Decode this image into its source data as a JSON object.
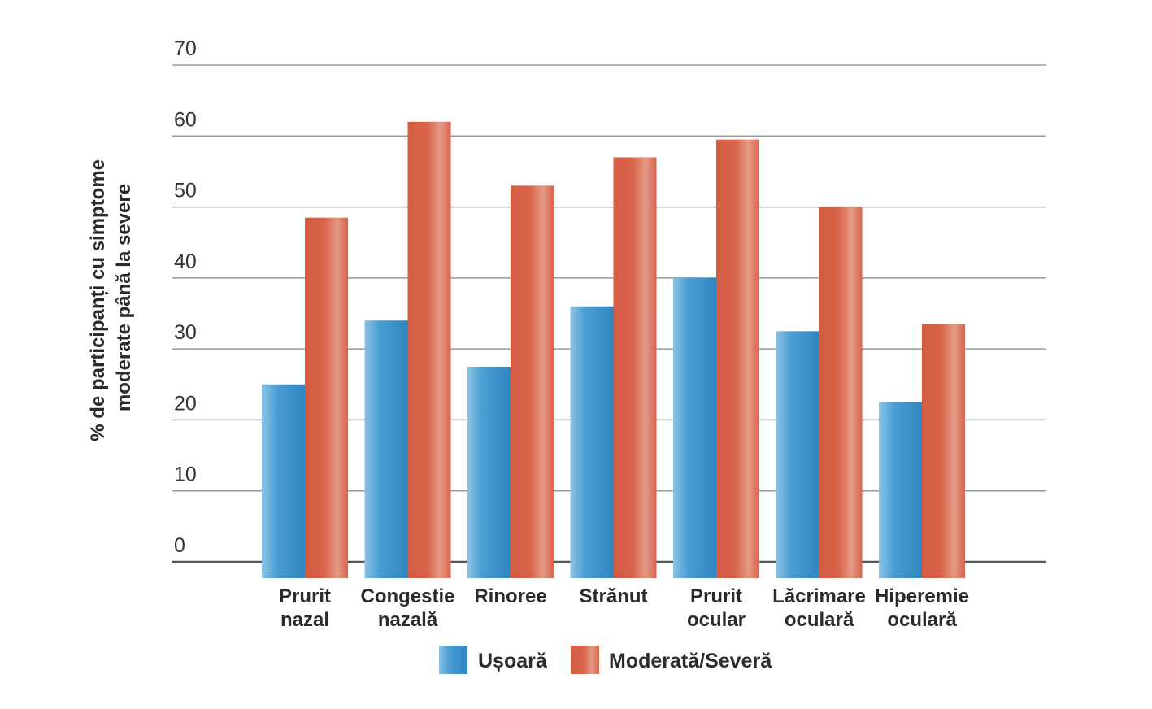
{
  "chart_data": {
    "type": "bar",
    "ylabel_lines": [
      "% de participanți cu simptome",
      "moderate până la severe"
    ],
    "ylim": [
      0,
      70
    ],
    "yticks": [
      0,
      10,
      20,
      30,
      40,
      50,
      60,
      70
    ],
    "grid": true,
    "legend_placement": "bottom",
    "categories": [
      [
        "Prurit",
        "nazal"
      ],
      [
        "Congestie",
        "nazală"
      ],
      [
        "Rinoree"
      ],
      [
        "Strănut"
      ],
      [
        "Prurit",
        "ocular"
      ],
      [
        "Lăcrimare",
        "oculară"
      ],
      [
        "Hiperemie",
        "oculară"
      ]
    ],
    "series": [
      {
        "name": "Ușoară",
        "color": "#3a8fc6",
        "values": [
          25,
          34,
          27.5,
          36,
          40,
          32.5,
          22.5
        ]
      },
      {
        "name": "Moderată/Severă",
        "color": "#d9644a",
        "values": [
          48.5,
          62,
          53,
          57,
          59.5,
          50,
          33.5
        ]
      }
    ]
  }
}
